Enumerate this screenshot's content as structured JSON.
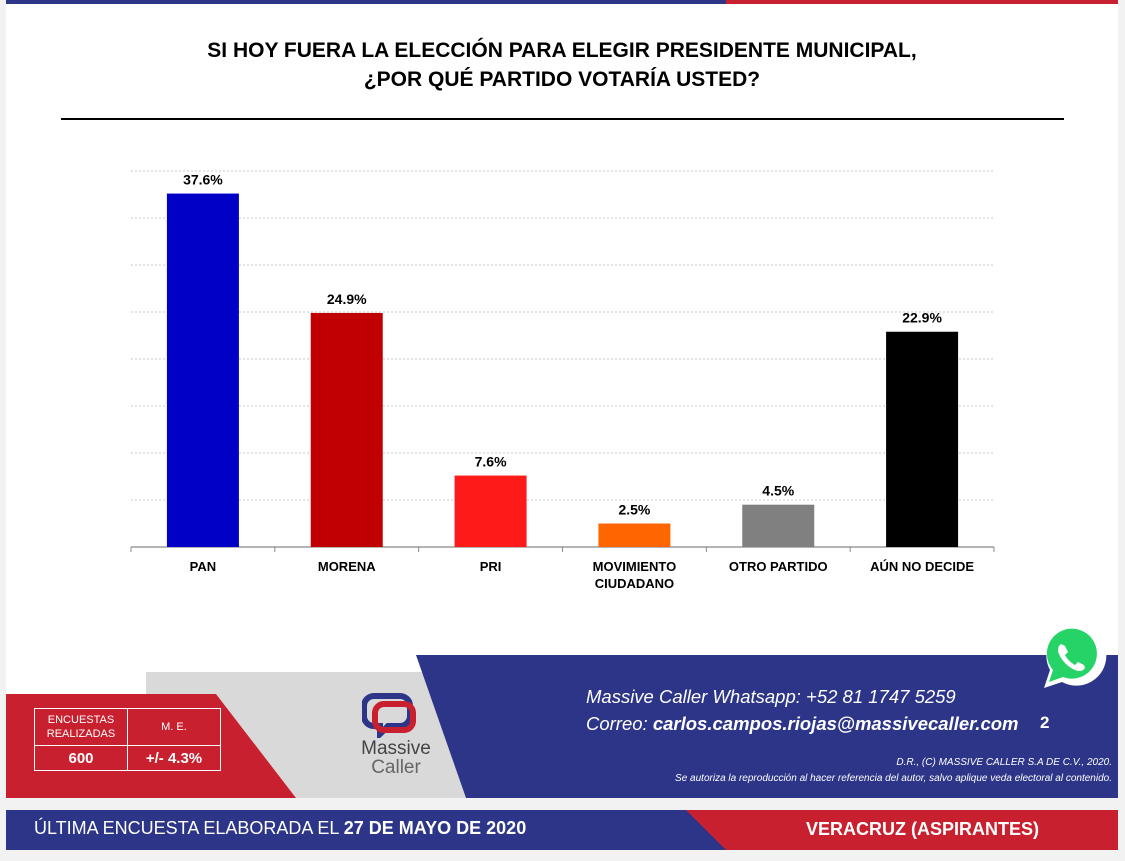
{
  "title_line1": "SI HOY FUERA LA ELECCIÓN PARA ELEGIR PRESIDENTE MUNICIPAL,",
  "title_line2": "¿POR QUÉ PARTIDO VOTARÍA USTED?",
  "chart_data": {
    "type": "bar",
    "categories": [
      "PAN",
      "MORENA",
      "PRI",
      "MOVIMIENTO CIUDADANO",
      "OTRO PARTIDO",
      "AÚN NO DECIDE"
    ],
    "category_lines": [
      [
        "PAN"
      ],
      [
        "MORENA"
      ],
      [
        "PRI"
      ],
      [
        "MOVIMIENTO",
        "CIUDADANO"
      ],
      [
        "OTRO PARTIDO"
      ],
      [
        "AÚN NO DECIDE"
      ]
    ],
    "values": [
      37.6,
      24.9,
      7.6,
      2.5,
      4.5,
      22.9
    ],
    "labels": [
      "37.6%",
      "24.9%",
      "7.6%",
      "2.5%",
      "4.5%",
      "22.9%"
    ],
    "colors": [
      "#0000c6",
      "#c00000",
      "#ff1a1a",
      "#ff6600",
      "#808080",
      "#000000"
    ],
    "ylim": [
      0,
      40
    ],
    "grid": true,
    "xlabel": "",
    "ylabel": ""
  },
  "stats": {
    "surveys_label_1": "ENCUESTAS",
    "surveys_label_2": "REALIZADAS",
    "margin_label": "M. E.",
    "surveys_value": "600",
    "margin_value": "+/- 4.3%"
  },
  "logo": {
    "line1": "Massive",
    "line2": "Caller"
  },
  "contact": {
    "whatsapp_label": "Massive Caller Whatsapp:",
    "whatsapp_number": "+52 81 1747 5259",
    "email_label": "Correo:",
    "email": "carlos.campos.riojas@massivecaller.com"
  },
  "page_number": "2",
  "legal": {
    "line1": "D.R., (C) MASSIVE CALLER S.A DE C.V., 2020.",
    "line2": "Se autoriza la reproducción al hacer referencia del autor, salvo aplique veda electoral al contenido."
  },
  "bottom": {
    "prefix": "ÚLTIMA ENCUESTA ELABORADA EL",
    "date": "27 DE MAYO DE 2020",
    "region": "VERACRUZ (ASPIRANTES)"
  },
  "colors": {
    "navy": "#2d3588",
    "red": "#c8202f",
    "whatsapp_green": "#25d366"
  }
}
